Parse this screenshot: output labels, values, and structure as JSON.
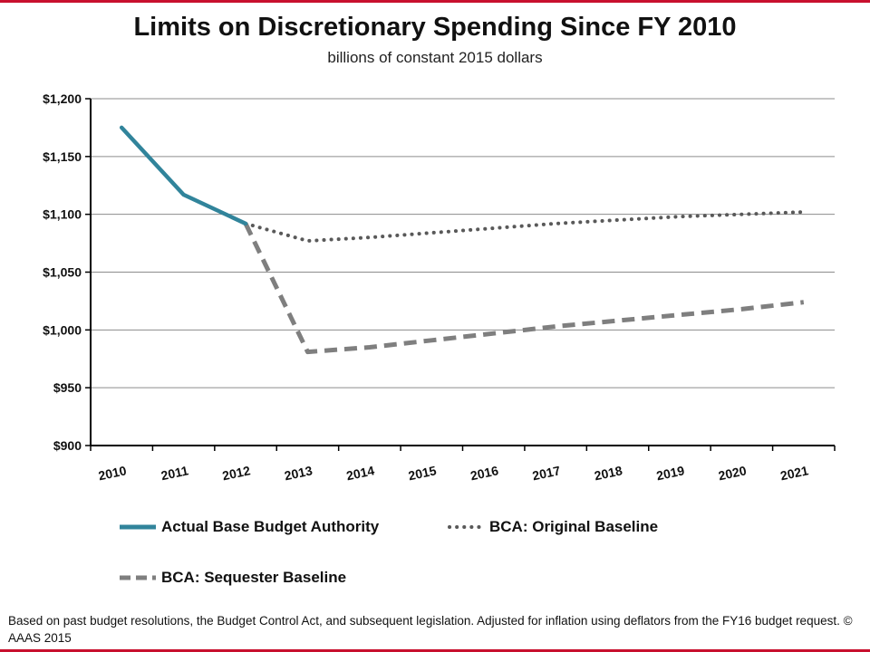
{
  "page": {
    "title": "Limits on Discretionary Spending Since FY 2010",
    "subtitle": "billions of constant 2015 dollars",
    "footnote": "Based on past budget resolutions, the Budget Control Act, and subsequent legislation.  Adjusted for inflation using deflators from the FY16 budget request. © AAAS 2015",
    "frame_color": "#c8102e"
  },
  "chart_data": {
    "type": "line",
    "title": "Limits on Discretionary Spending Since FY 2010",
    "subtitle": "billions of constant 2015 dollars",
    "xlabel": "",
    "ylabel": "",
    "categories": [
      "2010",
      "2011",
      "2012",
      "2013",
      "2014",
      "2015",
      "2016",
      "2017",
      "2018",
      "2019",
      "2020",
      "2021"
    ],
    "ylim": [
      900,
      1200
    ],
    "yticks": [
      900,
      950,
      1000,
      1050,
      1100,
      1150,
      1200
    ],
    "ytick_labels": [
      "$900",
      "$950",
      "$1,000",
      "$1,050",
      "$1,100",
      "$1,150",
      "$1,200"
    ],
    "grid": true,
    "legend_position": "bottom",
    "series": [
      {
        "name": "Actual Base Budget Authority",
        "color": "#31849b",
        "style": "solid",
        "values": [
          1175,
          1117,
          1092,
          null,
          null,
          null,
          null,
          null,
          null,
          null,
          null,
          null
        ]
      },
      {
        "name": "BCA: Original Baseline",
        "color": "#595959",
        "style": "dotted",
        "values": [
          null,
          null,
          1092,
          1077,
          1080,
          1084,
          1088,
          1092,
          1095,
          1098,
          1100,
          1102
        ]
      },
      {
        "name": "BCA: Sequester Baseline",
        "color": "#7f7f7f",
        "style": "dashed",
        "values": [
          null,
          null,
          1092,
          981,
          985,
          991,
          997,
          1003,
          1008,
          1013,
          1018,
          1024
        ]
      }
    ]
  }
}
